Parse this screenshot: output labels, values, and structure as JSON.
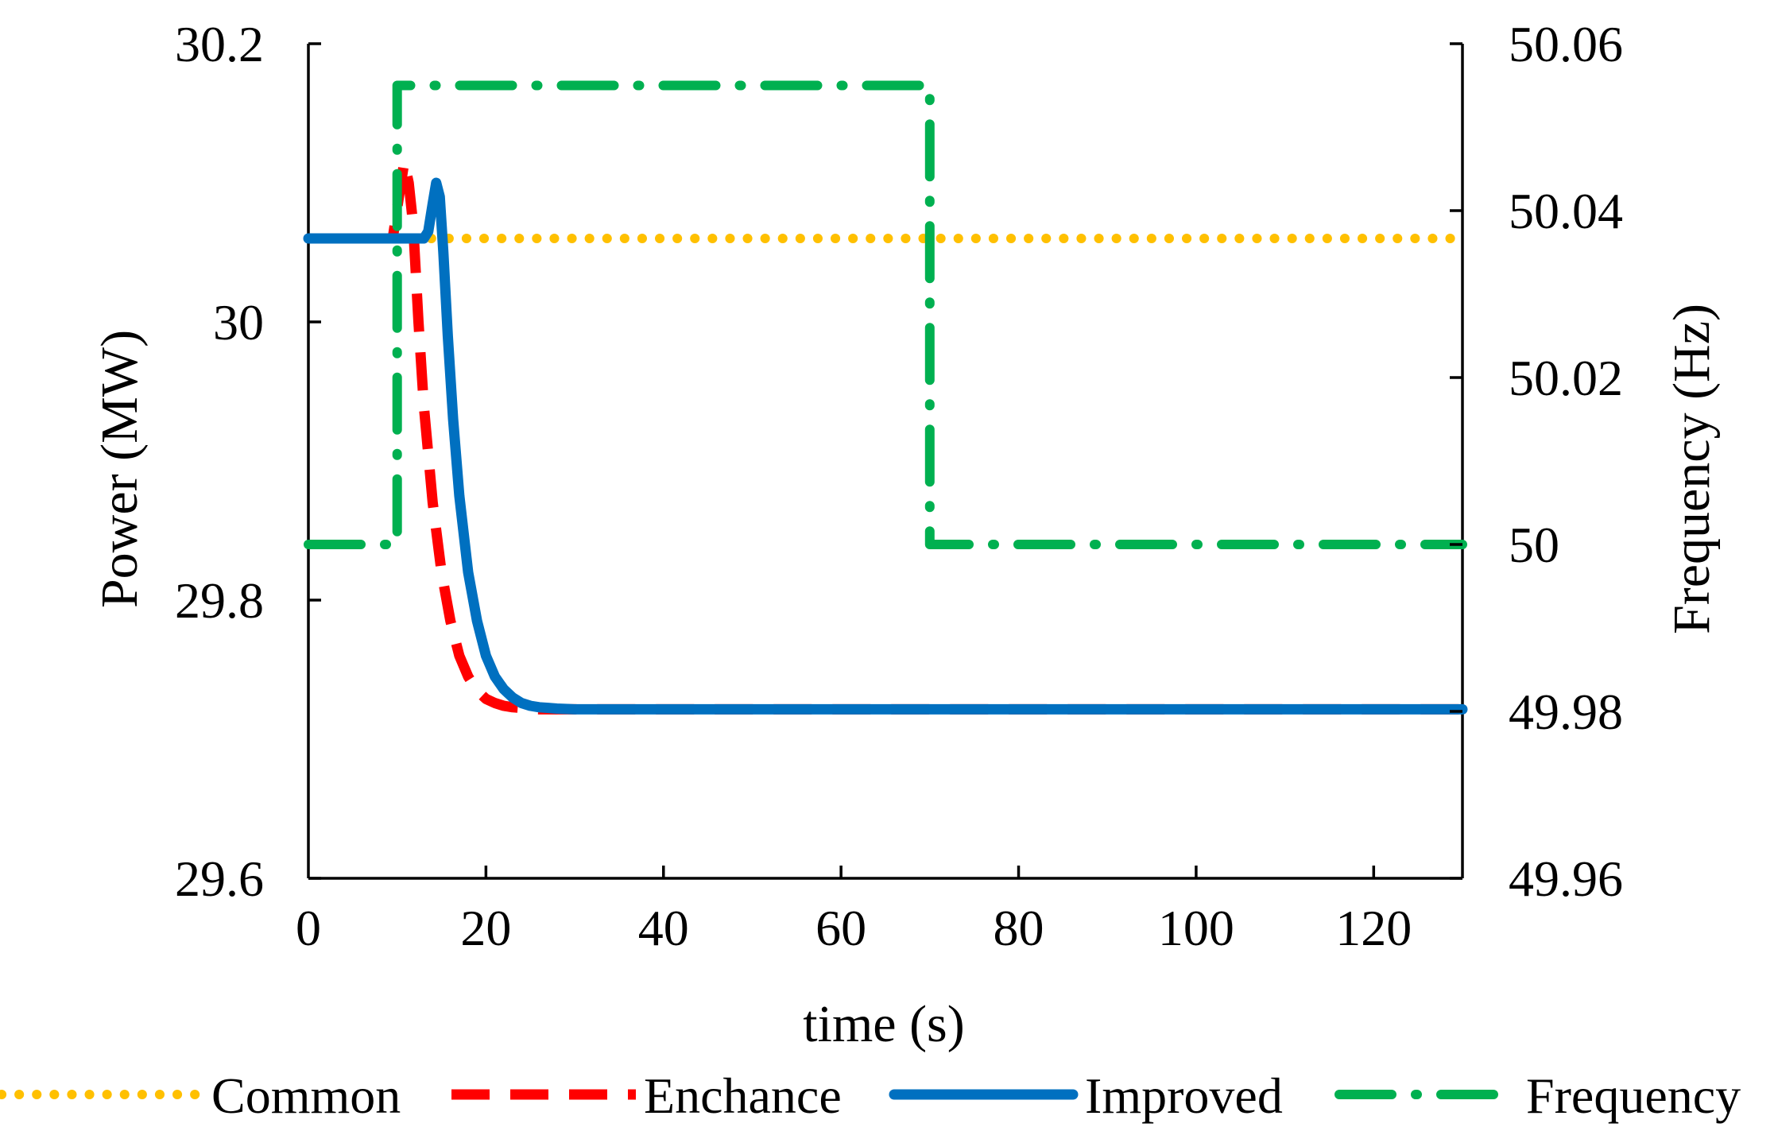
{
  "chart_data": {
    "type": "line",
    "title": "",
    "xlabel": "time (s)",
    "ylabel": "Power (MW)",
    "y2label": "Frequency (Hz)",
    "xlim": [
      0,
      130
    ],
    "ylim": [
      29.6,
      30.2
    ],
    "y2lim": [
      49.96,
      50.06
    ],
    "x_ticks": [
      "0",
      "20",
      "40",
      "60",
      "80",
      "100",
      "120"
    ],
    "y_ticks": [
      "29.6",
      "29.8",
      "30",
      "30.2"
    ],
    "y2_ticks": [
      "49.96",
      "49.98",
      "50",
      "50.02",
      "50.04",
      "50.06"
    ],
    "grid": false,
    "legend_position": "bottom",
    "series": [
      {
        "name": "Common",
        "axis": "left",
        "color": "#FFC000",
        "style": "dotted",
        "x": [
          0,
          130
        ],
        "y": [
          30.06,
          30.06
        ]
      },
      {
        "name": "Enchance",
        "axis": "left",
        "color": "#FF0000",
        "style": "dashed",
        "x": [
          0,
          9.5,
          10.2,
          10.8,
          11.3,
          11.8,
          12.4,
          13,
          14,
          15,
          16,
          17,
          18,
          19,
          20,
          21,
          22,
          23,
          24,
          25,
          26,
          28,
          30,
          35,
          130
        ],
        "y": [
          30.06,
          30.06,
          30.09,
          30.115,
          30.1,
          30.07,
          30.0,
          29.94,
          29.87,
          29.82,
          29.785,
          29.76,
          29.745,
          29.735,
          29.729,
          29.726,
          29.724,
          29.723,
          29.7225,
          29.722,
          29.7215,
          29.7215,
          29.7215,
          29.7215,
          29.7215
        ]
      },
      {
        "name": "Improved",
        "axis": "left",
        "color": "#0070C0",
        "style": "solid",
        "x": [
          0,
          13,
          13.5,
          14,
          14.4,
          14.8,
          15.2,
          15.7,
          16.3,
          17,
          18,
          19,
          20,
          21,
          22,
          23,
          24,
          25,
          26,
          27,
          28,
          30,
          33,
          40,
          130
        ],
        "y": [
          30.06,
          30.06,
          30.065,
          30.085,
          30.1,
          30.09,
          30.05,
          29.99,
          29.93,
          29.875,
          29.82,
          29.785,
          29.76,
          29.745,
          29.736,
          29.73,
          29.726,
          29.724,
          29.723,
          29.7225,
          29.722,
          29.7215,
          29.7215,
          29.7215,
          29.7215
        ]
      },
      {
        "name": "Frequency",
        "axis": "right",
        "color": "#00B050",
        "style": "dashdot",
        "x": [
          0,
          10,
          10,
          70,
          70,
          130
        ],
        "y": [
          50.0,
          50.0,
          50.055,
          50.055,
          50.0,
          50.0
        ]
      }
    ]
  }
}
